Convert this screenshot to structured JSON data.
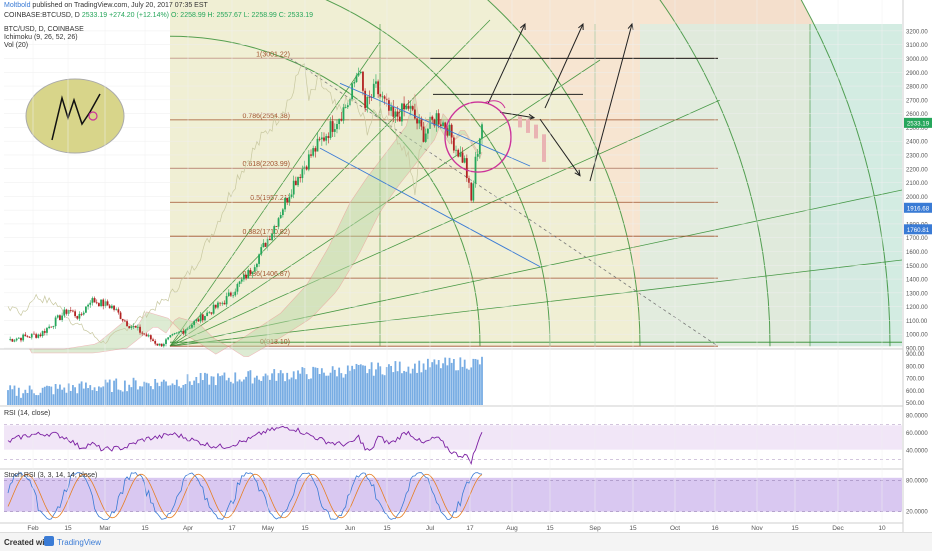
{
  "header": {
    "author": "Moltbold",
    "published": "published on TradingView.com, July 20, 2017 07:35 EST",
    "ticker": "COINBASE:BTCUSD, D",
    "last": "2533.19",
    "change": "+274.20 (+12.14%)",
    "ohlc": "O: 2258.99  H: 2557.67  L: 2258.99  C: 2533.19",
    "series_label": "BTC/USD, D, COINBASE",
    "indicator_1": "Ichimoku (9, 26, 52, 26)",
    "indicator_2": "Vol (20)"
  },
  "footer": {
    "created_with": "Created with",
    "brand": "TradingView"
  },
  "colors": {
    "up": "#26a65b",
    "down": "#b22222",
    "fib_line": "#a0522d",
    "gann": "#2e8b2e",
    "rsi": "#7b1fa2",
    "volume": "#4a90d9",
    "annotation_circle": "#cc3399",
    "channel_line": "#3a7bd5"
  },
  "chart_data": [
    {
      "type": "candlestick",
      "title": "BTC/USD, D, COINBASE",
      "y_axis_side": "right",
      "y_ticks": [
        900,
        1000,
        1100,
        1200,
        1300,
        1400,
        1500,
        1600,
        1700,
        1800,
        1900,
        2000,
        2100,
        2200,
        2300,
        2400,
        2500,
        2600,
        2700,
        2800,
        2900,
        3000,
        3100,
        3200
      ],
      "ylim": [
        900,
        3250
      ],
      "x_ticks": [
        "Feb",
        "15",
        "Mar",
        "15",
        "Apr",
        "17",
        "May",
        "15",
        "Jun",
        "15",
        "Jul",
        "17",
        "Aug",
        "15",
        "Sep",
        "15",
        "Oct",
        "16",
        "Nov",
        "15",
        "Dec",
        "10"
      ],
      "price_labels": [
        {
          "label": "2533.19",
          "value": 2533
        },
        {
          "label": "1916.68",
          "value": 1917
        },
        {
          "label": "1760.81",
          "value": 1761
        }
      ],
      "fib_levels": [
        {
          "label": "1(3001.22)",
          "value": 3001.22
        },
        {
          "label": "0.786(2554.38)",
          "value": 2554.38
        },
        {
          "label": "0.618(2203.99)",
          "value": 2203.99
        },
        {
          "label": "0.5(1957.21)",
          "value": 1957.21
        },
        {
          "label": "0.382(1710.82)",
          "value": 1710.82
        },
        {
          "label": "0.236(1406.87)",
          "value": 1406.87
        },
        {
          "label": "0(913.10)",
          "value": 913.1
        }
      ],
      "annotations": [
        "Gann fan",
        "Fibonacci retracement",
        "projected path arrows",
        "descending channel"
      ]
    },
    {
      "type": "bar",
      "title": "Vol (20)",
      "y_ticks_label": [
        "900.00",
        "800.00",
        "700.00",
        "600.00",
        "500.00"
      ]
    },
    {
      "type": "line",
      "title": "RSI (14, close)",
      "y_ticks": [
        40,
        60,
        80
      ],
      "y_tick_labels": [
        "40.0000",
        "60.0000",
        "80.0000"
      ],
      "band": [
        30,
        70
      ]
    },
    {
      "type": "line",
      "title": "Stoch RSI (3, 3, 14, 14, close)",
      "y_ticks": [
        20,
        80
      ],
      "y_tick_labels": [
        "20.0000",
        "80.0000"
      ],
      "band": [
        20,
        80
      ]
    }
  ]
}
